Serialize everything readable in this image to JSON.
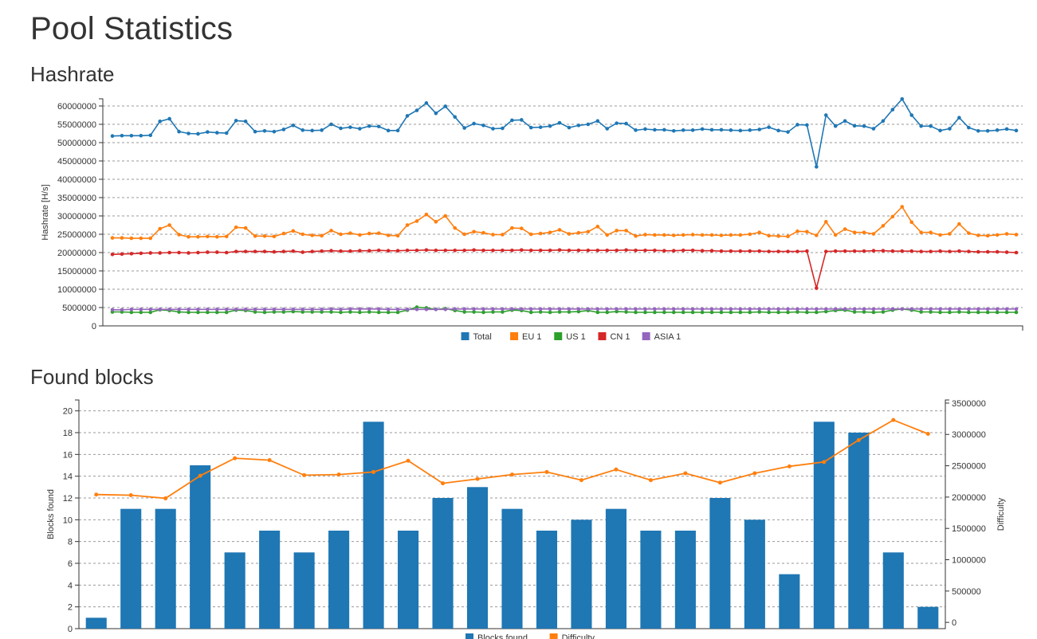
{
  "page": {
    "title": "Pool Statistics"
  },
  "hashrate_section": {
    "title": "Hashrate"
  },
  "blocks_section": {
    "title": "Found blocks"
  },
  "colors": {
    "Total": "#1f77b4",
    "EU 1": "#ff7f0e",
    "US 1": "#2ca02c",
    "CN 1": "#d62728",
    "ASIA 1": "#9467bd",
    "bars": "#1f77b4",
    "difficulty": "#ff7f0e"
  },
  "chart_data": [
    {
      "type": "line",
      "ylabel": "Hashrate [H/s]",
      "ylim": [
        0,
        60000000
      ],
      "yticks": [
        "0",
        "5000000",
        "10000000",
        "15000000",
        "20000000",
        "25000000",
        "30000000",
        "35000000",
        "40000000",
        "45000000",
        "50000000",
        "55000000",
        "60000000"
      ],
      "grid": true,
      "legend": "bottom-center",
      "series": [
        {
          "name": "Total",
          "values": [
            51800000,
            51900000,
            51900000,
            51900000,
            52000000,
            55800000,
            56500000,
            53000000,
            52500000,
            52400000,
            52900000,
            52700000,
            52600000,
            56000000,
            55800000,
            53000000,
            53200000,
            53000000,
            53600000,
            54700000,
            53400000,
            53300000,
            53400000,
            55000000,
            53900000,
            54200000,
            53800000,
            54500000,
            54400000,
            53300000,
            53300000,
            57300000,
            58800000,
            60800000,
            58000000,
            59900000,
            57000000,
            54000000,
            55200000,
            54700000,
            53800000,
            53900000,
            56100000,
            56200000,
            54100000,
            54200000,
            54500000,
            55400000,
            54100000,
            54700000,
            55000000,
            55900000,
            53800000,
            55300000,
            55200000,
            53400000,
            53700000,
            53500000,
            53500000,
            53200000,
            53400000,
            53400000,
            53700000,
            53500000,
            53500000,
            53400000,
            53300000,
            53400000,
            53600000,
            54200000,
            53300000,
            52900000,
            54900000,
            54800000,
            43400000,
            57500000,
            54500000,
            55900000,
            54600000,
            54500000,
            53800000,
            55900000,
            59000000,
            61900000,
            57500000,
            54500000,
            54500000,
            53300000,
            53800000,
            56800000,
            54100000,
            53200000,
            53200000,
            53400000,
            53700000,
            53300000
          ]
        },
        {
          "name": "EU 1",
          "values": [
            24000000,
            24000000,
            23900000,
            23900000,
            23900000,
            26500000,
            27500000,
            24900000,
            24300000,
            24300000,
            24400000,
            24300000,
            24400000,
            26900000,
            26700000,
            24500000,
            24500000,
            24400000,
            25200000,
            25900000,
            25000000,
            24700000,
            24600000,
            26000000,
            25000000,
            25300000,
            24800000,
            25200000,
            25300000,
            24700000,
            24600000,
            27500000,
            28600000,
            30400000,
            28400000,
            30000000,
            26700000,
            25000000,
            25700000,
            25400000,
            24900000,
            24900000,
            26700000,
            26600000,
            25000000,
            25200000,
            25500000,
            26200000,
            25100000,
            25400000,
            25700000,
            27100000,
            24800000,
            26000000,
            26000000,
            24500000,
            24900000,
            24800000,
            24800000,
            24700000,
            24800000,
            24900000,
            24800000,
            24800000,
            24700000,
            24800000,
            24800000,
            25000000,
            25500000,
            24600000,
            24500000,
            24400000,
            25800000,
            25700000,
            24700000,
            28400000,
            24800000,
            26400000,
            25500000,
            25500000,
            25100000,
            27300000,
            29800000,
            32500000,
            28300000,
            25500000,
            25500000,
            24800000,
            25100000,
            27800000,
            25300000,
            24700000,
            24600000,
            24800000,
            25100000,
            24900000
          ]
        },
        {
          "name": "US 1",
          "values": [
            3800000,
            3800000,
            3700000,
            3700000,
            3700000,
            4400000,
            4200000,
            3800000,
            3700000,
            3700000,
            3700000,
            3700000,
            3700000,
            4300000,
            4200000,
            3800000,
            3700000,
            3800000,
            3800000,
            3900000,
            3800000,
            3800000,
            3800000,
            3800000,
            3700000,
            3800000,
            3700000,
            3800000,
            3700000,
            3700000,
            3700000,
            4300000,
            5100000,
            4900000,
            4500000,
            4700000,
            4200000,
            3800000,
            3800000,
            3700000,
            3800000,
            3800000,
            4300000,
            4200000,
            3700000,
            3800000,
            3700000,
            3800000,
            3800000,
            3900000,
            4200000,
            3700000,
            3700000,
            3900000,
            3800000,
            3700000,
            3700000,
            3700000,
            3700000,
            3700000,
            3700000,
            3700000,
            3700000,
            3700000,
            3700000,
            3700000,
            3700000,
            3700000,
            3800000,
            3700000,
            3700000,
            3700000,
            3800000,
            3700000,
            3700000,
            3900000,
            4200000,
            4300000,
            3800000,
            3800000,
            3700000,
            3800000,
            4300000,
            4600000,
            4300000,
            3800000,
            3800000,
            3700000,
            3700000,
            3800000,
            3700000,
            3700000,
            3700000,
            3700000,
            3700000,
            3700000
          ]
        },
        {
          "name": "CN 1",
          "values": [
            19500000,
            19600000,
            19700000,
            19800000,
            19900000,
            19900000,
            20000000,
            20000000,
            19900000,
            20000000,
            20100000,
            20100000,
            20000000,
            20300000,
            20300000,
            20300000,
            20300000,
            20200000,
            20300000,
            20400000,
            20100000,
            20300000,
            20400000,
            20500000,
            20400000,
            20400000,
            20500000,
            20500000,
            20600000,
            20500000,
            20500000,
            20600000,
            20600000,
            20700000,
            20600000,
            20600000,
            20600000,
            20600000,
            20700000,
            20600000,
            20600000,
            20600000,
            20600000,
            20700000,
            20600000,
            20600000,
            20600000,
            20700000,
            20600000,
            20600000,
            20600000,
            20600000,
            20600000,
            20600000,
            20700000,
            20600000,
            20600000,
            20600000,
            20500000,
            20500000,
            20600000,
            20600000,
            20500000,
            20500000,
            20400000,
            20400000,
            20400000,
            20400000,
            20400000,
            20300000,
            20300000,
            20300000,
            20300000,
            20400000,
            10300000,
            20300000,
            20400000,
            20400000,
            20400000,
            20400000,
            20500000,
            20500000,
            20400000,
            20400000,
            20400000,
            20300000,
            20300000,
            20400000,
            20300000,
            20400000,
            20300000,
            20200000,
            20200000,
            20200000,
            20100000,
            20000000
          ]
        },
        {
          "name": "ASIA 1",
          "values": [
            4400000,
            4400000,
            4500000,
            4500000,
            4500000,
            4500000,
            4500000,
            4500000,
            4500000,
            4500000,
            4500000,
            4500000,
            4500000,
            4500000,
            4500000,
            4500000,
            4500000,
            4500000,
            4500000,
            4500000,
            4500000,
            4500000,
            4500000,
            4600000,
            4500000,
            4600000,
            4600000,
            4600000,
            4600000,
            4500000,
            4500000,
            4500000,
            4500000,
            4500000,
            4500000,
            4500000,
            4600000,
            4600000,
            4600000,
            4600000,
            4600000,
            4600000,
            4600000,
            4600000,
            4600000,
            4600000,
            4600000,
            4600000,
            4600000,
            4600000,
            4600000,
            4600000,
            4600000,
            4600000,
            4600000,
            4600000,
            4600000,
            4600000,
            4600000,
            4600000,
            4600000,
            4600000,
            4600000,
            4600000,
            4600000,
            4600000,
            4600000,
            4600000,
            4600000,
            4600000,
            4600000,
            4600000,
            4600000,
            4600000,
            4600000,
            4600000,
            4600000,
            4600000,
            4600000,
            4600000,
            4600000,
            4600000,
            4600000,
            4600000,
            4600000,
            4600000,
            4600000,
            4600000,
            4600000,
            4600000,
            4600000,
            4600000,
            4600000,
            4600000,
            4600000,
            4600000
          ]
        }
      ]
    },
    {
      "type": "bar",
      "ylabel": "Blocks found",
      "ylim": [
        0,
        21
      ],
      "yticks": [
        "0",
        "2",
        "4",
        "6",
        "8",
        "10",
        "12",
        "14",
        "16",
        "18",
        "20"
      ],
      "y2label": "Difficulty",
      "y2lim": [
        -100000,
        3550000
      ],
      "y2ticks": [
        "0",
        "500000",
        "1000000",
        "1500000",
        "2000000",
        "2500000",
        "3000000",
        "3500000"
      ],
      "grid": true,
      "legend": "bottom-center",
      "series": [
        {
          "name": "Blocks found",
          "type": "bar",
          "values": [
            1,
            11,
            11,
            15,
            7,
            9,
            7,
            9,
            19,
            9,
            12,
            13,
            11,
            9,
            10,
            11,
            9,
            9,
            12,
            10,
            5,
            19,
            18,
            7,
            2
          ]
        },
        {
          "name": "Difficulty",
          "type": "line",
          "axis": "right",
          "values": [
            2040000,
            2030000,
            1980000,
            2340000,
            2620000,
            2590000,
            2350000,
            2360000,
            2400000,
            2580000,
            2220000,
            2290000,
            2360000,
            2400000,
            2270000,
            2440000,
            2270000,
            2380000,
            2230000,
            2380000,
            2490000,
            2560000,
            2910000,
            3230000,
            3010000
          ]
        }
      ]
    }
  ]
}
